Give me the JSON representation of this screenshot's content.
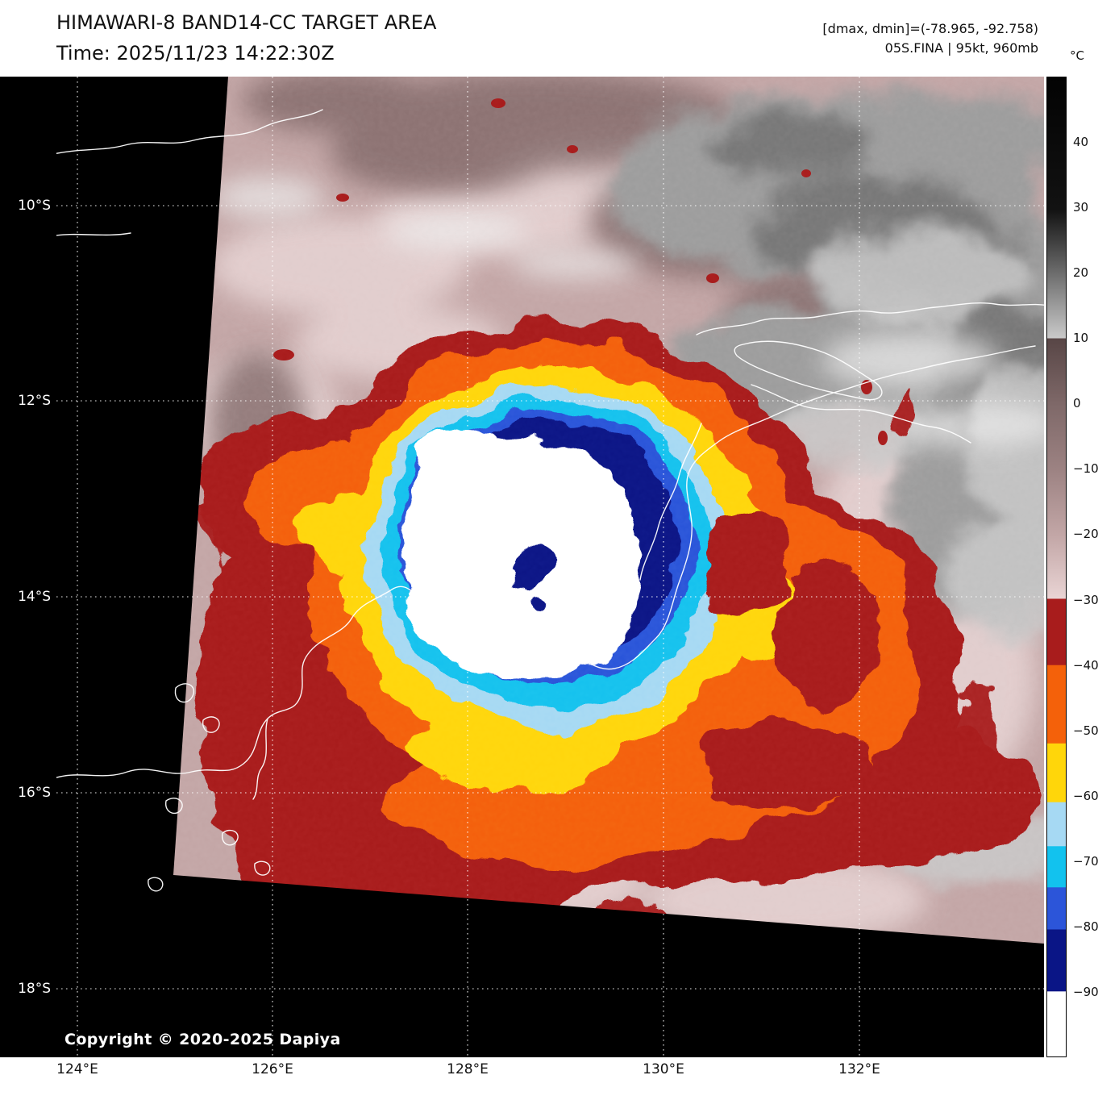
{
  "header": {
    "title": "HIMAWARI-8 BAND14-CC TARGET AREA",
    "time_line": "Time: 2025/11/23 14:22:30Z",
    "dmax_dmin": "[dmax, dmin]=(-78.965, -92.758)",
    "storm_info": "05S.FINA | 95kt, 960mb"
  },
  "copyright": "Copyright © 2020-2025 Dapiya",
  "axes": {
    "lat_ticks": [
      "10°S",
      "12°S",
      "14°S",
      "16°S",
      "18°S"
    ],
    "lon_ticks": [
      "124°E",
      "126°E",
      "128°E",
      "130°E",
      "132°E"
    ]
  },
  "colorbar": {
    "unit_label": "°C",
    "range_temp": [
      50,
      -100
    ],
    "ticks": [
      {
        "label": "40",
        "value": 40
      },
      {
        "label": "30",
        "value": 30
      },
      {
        "label": "20",
        "value": 20
      },
      {
        "label": "10",
        "value": 10
      },
      {
        "label": "0",
        "value": 0
      },
      {
        "label": "−10",
        "value": -10
      },
      {
        "label": "−20",
        "value": -20
      },
      {
        "label": "−30",
        "value": -30
      },
      {
        "label": "−40",
        "value": -40
      },
      {
        "label": "−50",
        "value": -50
      },
      {
        "label": "−60",
        "value": -60
      },
      {
        "label": "−70",
        "value": -70
      },
      {
        "label": "−80",
        "value": -80
      },
      {
        "label": "−90",
        "value": -90
      }
    ],
    "stops": [
      {
        "p": 0,
        "c": "#030303"
      },
      {
        "p": 13.5,
        "c": "#121212"
      },
      {
        "p": 26.6,
        "c": "#c9c9c9"
      },
      {
        "p": 26.7,
        "c": "#584646"
      },
      {
        "p": 33.3,
        "c": "#7e6868"
      },
      {
        "p": 40,
        "c": "#9c8282"
      },
      {
        "p": 46.7,
        "c": "#c2a6a6"
      },
      {
        "p": 53.2,
        "c": "#e9d4d4"
      },
      {
        "p": 53.3,
        "c": "#a81c1c"
      },
      {
        "p": 60,
        "c": "#a81c1c"
      },
      {
        "p": 60.05,
        "c": "#f4610a"
      },
      {
        "p": 68,
        "c": "#f4610a"
      },
      {
        "p": 68.05,
        "c": "#ffd60a"
      },
      {
        "p": 74,
        "c": "#ffd60a"
      },
      {
        "p": 74.05,
        "c": "#a6d9f3"
      },
      {
        "p": 78.5,
        "c": "#a6d9f3"
      },
      {
        "p": 78.55,
        "c": "#12c2ee"
      },
      {
        "p": 82.7,
        "c": "#12c2ee"
      },
      {
        "p": 82.75,
        "c": "#2c55d9"
      },
      {
        "p": 87,
        "c": "#2c55d9"
      },
      {
        "p": 87.05,
        "c": "#0a1586"
      },
      {
        "p": 93.33,
        "c": "#0a1586"
      },
      {
        "p": 93.38,
        "c": "#ffffff"
      },
      {
        "p": 100,
        "c": "#ffffff"
      }
    ]
  },
  "palette": {
    "bg_space": "#000000",
    "swath_base": "#c3a6a6",
    "cloud_light": "#e9d7d7",
    "cloud_bright": "#efefef",
    "cloud_dark": "#7b6363",
    "gray_mid": "#9d9d9d",
    "gray_dark": "#6f6f6f",
    "gray_light": "#c9c9c9",
    "ring_darkred": "#a81c1c",
    "ring_orange": "#f4610a",
    "ring_yellow": "#ffd60a",
    "ring_pale": "#a6d9f3",
    "ring_cyan": "#12c2ee",
    "ring_royal": "#2c55d9",
    "ring_navy": "#0a1586",
    "ring_white": "#ffffff",
    "coast": "#ffffff",
    "grid": "#ffffff"
  }
}
